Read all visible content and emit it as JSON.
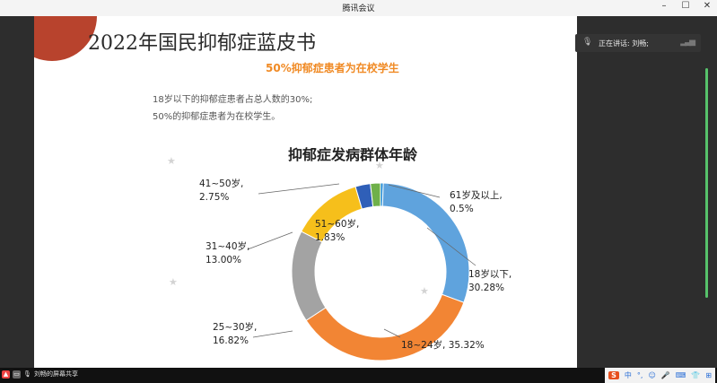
{
  "window": {
    "title": "腾讯会议"
  },
  "meeting": {
    "speaker_label": "正在讲话: 刘畅;",
    "share_label": "刘畅的屏幕共享"
  },
  "slide": {
    "title": "2022年国民抑郁症蓝皮书",
    "subtitle": "50%抑郁症患者为在校学生",
    "desc_line1": "18岁以下的抑郁症患者占总人数的30%;",
    "desc_line2": "50%的抑郁症患者为在校学生。"
  },
  "ime": {
    "lang": "中"
  },
  "chart_data": {
    "type": "pie",
    "title": "抑郁症发病群体年龄",
    "donut": true,
    "slices": [
      {
        "label": "61岁及以上",
        "value": 0.5,
        "value_label": "0.5%",
        "color": "#1f8ad6"
      },
      {
        "label": "18岁以下",
        "value": 30.28,
        "value_label": "30.28%",
        "color": "#5fa3dd"
      },
      {
        "label": "18~24岁",
        "value": 35.32,
        "value_label": "35.32%",
        "color": "#f28534"
      },
      {
        "label": "25~30岁",
        "value": 16.82,
        "value_label": "16.82%",
        "color": "#a3a3a3"
      },
      {
        "label": "31~40岁",
        "value": 13.0,
        "value_label": "13.00%",
        "color": "#f6bf1b"
      },
      {
        "label": "41~50岁",
        "value": 2.75,
        "value_label": "2.75%",
        "color": "#2f5fb8"
      },
      {
        "label": "51~60岁",
        "value": 1.83,
        "value_label": "1.83%",
        "color": "#6fb04a"
      }
    ]
  }
}
